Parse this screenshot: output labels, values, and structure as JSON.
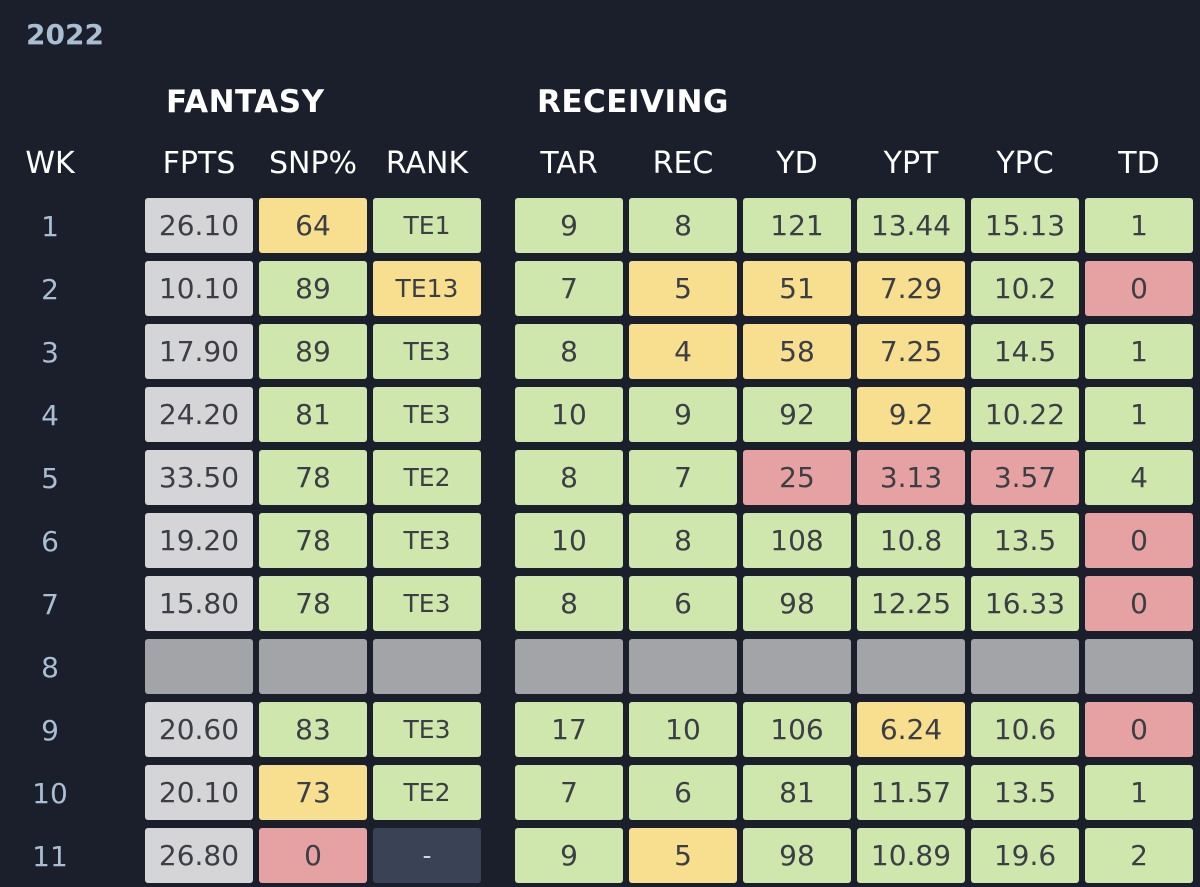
{
  "season": "2022",
  "groups": {
    "fantasy": "FANTASY",
    "receiving": "RECEIVING"
  },
  "headers": {
    "wk": "WK",
    "fpts": "FPTS",
    "snp": "SNP%",
    "rank": "RANK",
    "tar": "TAR",
    "rec": "REC",
    "yd": "YD",
    "ypt": "YPT",
    "ypc": "YPC",
    "td": "TD"
  },
  "colors": {
    "background": "#1b1f2b",
    "week_text": "#a9bdd3",
    "fpts_cell": "#d5d5d8",
    "good": "#cfe6ad",
    "average": "#f8df8f",
    "poor": "#e6a2a3",
    "bye": "#a3a4a7",
    "no_rank": "#394355"
  },
  "rows": [
    {
      "wk": "1",
      "fpts": "26.10",
      "snp": "64",
      "snp_c": "yellow",
      "rank": "TE1",
      "rank_c": "green",
      "tar": "9",
      "tar_c": "green",
      "rec": "8",
      "rec_c": "green",
      "yd": "121",
      "yd_c": "green",
      "ypt": "13.44",
      "ypt_c": "green",
      "ypc": "15.13",
      "ypc_c": "green",
      "td": "1",
      "td_c": "green"
    },
    {
      "wk": "2",
      "fpts": "10.10",
      "snp": "89",
      "snp_c": "green",
      "rank": "TE13",
      "rank_c": "yellow",
      "tar": "7",
      "tar_c": "green",
      "rec": "5",
      "rec_c": "yellow",
      "yd": "51",
      "yd_c": "yellow",
      "ypt": "7.29",
      "ypt_c": "yellow",
      "ypc": "10.2",
      "ypc_c": "green",
      "td": "0",
      "td_c": "red"
    },
    {
      "wk": "3",
      "fpts": "17.90",
      "snp": "89",
      "snp_c": "green",
      "rank": "TE3",
      "rank_c": "green",
      "tar": "8",
      "tar_c": "green",
      "rec": "4",
      "rec_c": "yellow",
      "yd": "58",
      "yd_c": "yellow",
      "ypt": "7.25",
      "ypt_c": "yellow",
      "ypc": "14.5",
      "ypc_c": "green",
      "td": "1",
      "td_c": "green"
    },
    {
      "wk": "4",
      "fpts": "24.20",
      "snp": "81",
      "snp_c": "green",
      "rank": "TE3",
      "rank_c": "green",
      "tar": "10",
      "tar_c": "green",
      "rec": "9",
      "rec_c": "green",
      "yd": "92",
      "yd_c": "green",
      "ypt": "9.2",
      "ypt_c": "yellow",
      "ypc": "10.22",
      "ypc_c": "green",
      "td": "1",
      "td_c": "green"
    },
    {
      "wk": "5",
      "fpts": "33.50",
      "snp": "78",
      "snp_c": "green",
      "rank": "TE2",
      "rank_c": "green",
      "tar": "8",
      "tar_c": "green",
      "rec": "7",
      "rec_c": "green",
      "yd": "25",
      "yd_c": "red",
      "ypt": "3.13",
      "ypt_c": "red",
      "ypc": "3.57",
      "ypc_c": "red",
      "td": "4",
      "td_c": "green"
    },
    {
      "wk": "6",
      "fpts": "19.20",
      "snp": "78",
      "snp_c": "green",
      "rank": "TE3",
      "rank_c": "green",
      "tar": "10",
      "tar_c": "green",
      "rec": "8",
      "rec_c": "green",
      "yd": "108",
      "yd_c": "green",
      "ypt": "10.8",
      "ypt_c": "green",
      "ypc": "13.5",
      "ypc_c": "green",
      "td": "0",
      "td_c": "red"
    },
    {
      "wk": "7",
      "fpts": "15.80",
      "snp": "78",
      "snp_c": "green",
      "rank": "TE3",
      "rank_c": "green",
      "tar": "8",
      "tar_c": "green",
      "rec": "6",
      "rec_c": "green",
      "yd": "98",
      "yd_c": "green",
      "ypt": "12.25",
      "ypt_c": "green",
      "ypc": "16.33",
      "ypc_c": "green",
      "td": "0",
      "td_c": "red"
    },
    {
      "wk": "8",
      "bye": true
    },
    {
      "wk": "9",
      "fpts": "20.60",
      "snp": "83",
      "snp_c": "green",
      "rank": "TE3",
      "rank_c": "green",
      "tar": "17",
      "tar_c": "green",
      "rec": "10",
      "rec_c": "green",
      "yd": "106",
      "yd_c": "green",
      "ypt": "6.24",
      "ypt_c": "yellow",
      "ypc": "10.6",
      "ypc_c": "green",
      "td": "0",
      "td_c": "red"
    },
    {
      "wk": "10",
      "fpts": "20.10",
      "snp": "73",
      "snp_c": "yellow",
      "rank": "TE2",
      "rank_c": "green",
      "tar": "7",
      "tar_c": "green",
      "rec": "6",
      "rec_c": "green",
      "yd": "81",
      "yd_c": "green",
      "ypt": "11.57",
      "ypt_c": "green",
      "ypc": "13.5",
      "ypc_c": "green",
      "td": "1",
      "td_c": "green"
    },
    {
      "wk": "11",
      "fpts": "26.80",
      "snp": "0",
      "snp_c": "red",
      "rank": "-",
      "rank_c": "dark",
      "tar": "9",
      "tar_c": "green",
      "rec": "5",
      "rec_c": "yellow",
      "yd": "98",
      "yd_c": "green",
      "ypt": "10.89",
      "ypt_c": "green",
      "ypc": "19.6",
      "ypc_c": "green",
      "td": "2",
      "td_c": "green"
    }
  ]
}
